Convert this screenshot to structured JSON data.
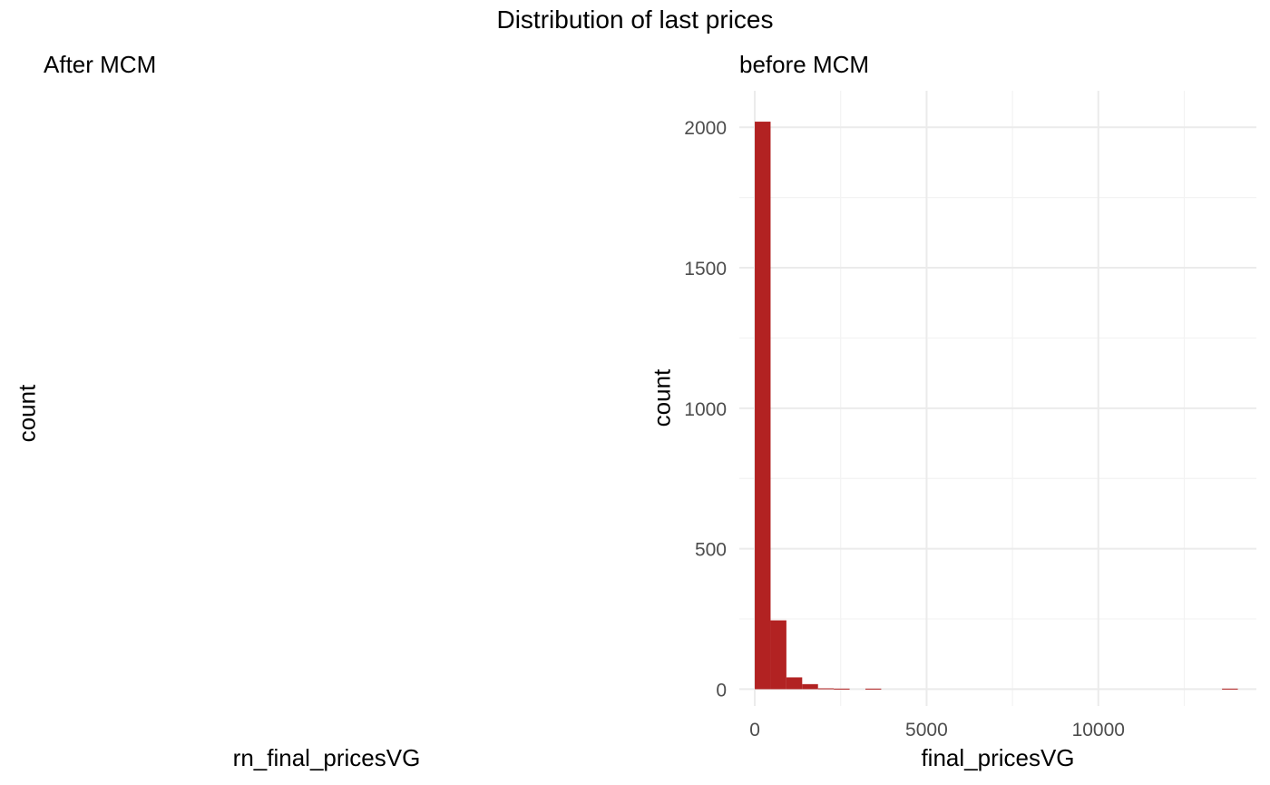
{
  "figure": {
    "title": "Distribution of last prices"
  },
  "panels": {
    "left": {
      "title": "After MCM",
      "xlabel": "rn_final_pricesVG",
      "ylabel": "count"
    },
    "right": {
      "title": "before MCM",
      "xlabel": "final_pricesVG",
      "ylabel": "count"
    }
  },
  "colors": {
    "bar": "#b22222",
    "grid_major": "#ebebeb",
    "grid_minor": "#f3f3f3",
    "tick_text": "#4d4d4d"
  },
  "chart_data": [
    {
      "type": "bar",
      "title": "After MCM",
      "xlabel": "rn_final_pricesVG",
      "ylabel": "count",
      "bins": [],
      "values": [],
      "grid": false
    },
    {
      "type": "bar",
      "title": "before MCM",
      "xlabel": "final_pricesVG",
      "ylabel": "count",
      "xlim": [
        -450,
        14600
      ],
      "ylim": [
        -60,
        2130
      ],
      "xticks": [
        0,
        5000,
        10000
      ],
      "yticks": [
        0,
        500,
        1000,
        1500,
        2000
      ],
      "bin_width": 460,
      "bins": [
        {
          "x0": 0,
          "x1": 460,
          "count": 2020
        },
        {
          "x0": 460,
          "x1": 920,
          "count": 245
        },
        {
          "x0": 920,
          "x1": 1380,
          "count": 42
        },
        {
          "x0": 1380,
          "x1": 1840,
          "count": 18
        },
        {
          "x0": 1840,
          "x1": 2300,
          "count": 3
        },
        {
          "x0": 2300,
          "x1": 2760,
          "count": 2
        },
        {
          "x0": 3220,
          "x1": 3680,
          "count": 2
        },
        {
          "x0": 13600,
          "x1": 14060,
          "count": 2
        }
      ],
      "grid": true
    }
  ]
}
